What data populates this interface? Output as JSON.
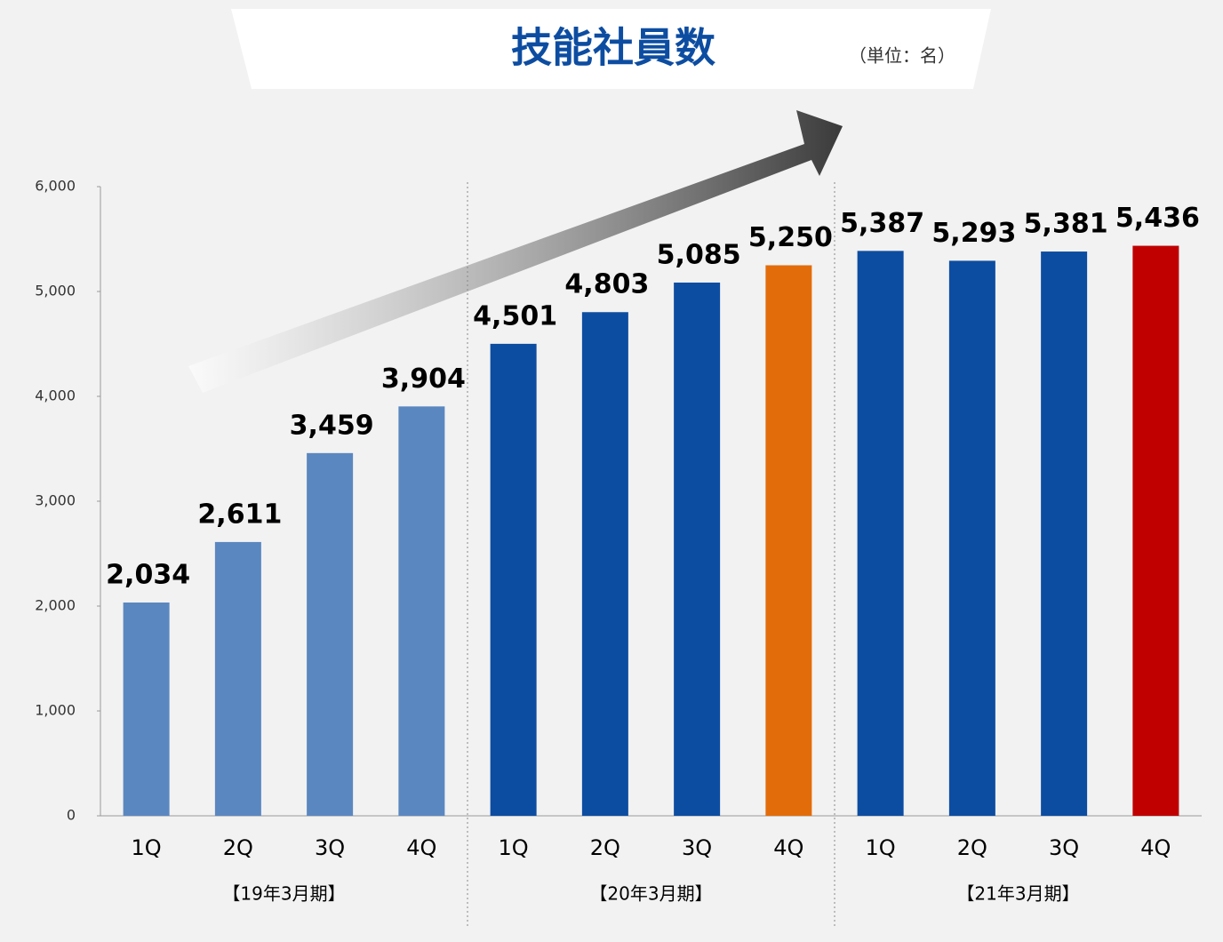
{
  "chart_data": {
    "type": "bar",
    "title": "技能社員数",
    "subtitle": "（単位：名）",
    "groups": [
      {
        "name": "【19年3月期】",
        "categories": [
          "1Q",
          "2Q",
          "3Q",
          "4Q"
        ],
        "values": [
          2034,
          2611,
          3459,
          3904
        ],
        "value_labels": [
          "2,034",
          "2,611",
          "3,459",
          "3,904"
        ],
        "colors": [
          "#5b87c0",
          "#5b87c0",
          "#5b87c0",
          "#5b87c0"
        ]
      },
      {
        "name": "【20年3月期】",
        "categories": [
          "1Q",
          "2Q",
          "3Q",
          "4Q"
        ],
        "values": [
          4501,
          4803,
          5085,
          5250
        ],
        "value_labels": [
          "4,501",
          "4,803",
          "5,085",
          "5,250"
        ],
        "colors": [
          "#0d4da1",
          "#0d4da1",
          "#0d4da1",
          "#e36c0a"
        ]
      },
      {
        "name": "【21年3月期】",
        "categories": [
          "1Q",
          "2Q",
          "3Q",
          "4Q"
        ],
        "values": [
          5387,
          5293,
          5381,
          5436
        ],
        "value_labels": [
          "5,387",
          "5,293",
          "5,381",
          "5,436"
        ],
        "colors": [
          "#0d4da1",
          "#0d4da1",
          "#0d4da1",
          "#c00000"
        ]
      }
    ],
    "ylim": [
      0,
      6000
    ],
    "yticks": [
      0,
      {
        "value": 1000,
        "label": "1,000"
      },
      {
        "value": 2000,
        "label": "2,000"
      },
      {
        "value": 3000,
        "label": "3,000"
      },
      {
        "value": 4000,
        "label": "4,000"
      },
      {
        "value": 5000,
        "label": "5,000"
      },
      {
        "value": 6000,
        "label": "6,000"
      }
    ]
  }
}
